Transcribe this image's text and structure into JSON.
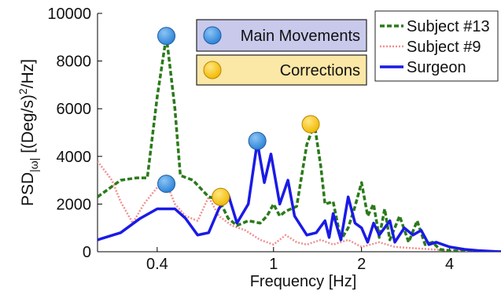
{
  "chart_data": {
    "type": "line",
    "xscale": "log",
    "xlabel": "Frequency [Hz]",
    "ylabel_parts": {
      "main": "PSD",
      "sub": "|ω|",
      "mid": " [(Deg/s)",
      "sup": "2",
      "tail": "/Hz]"
    },
    "xlim": [
      0.25,
      6.0
    ],
    "ylim": [
      0,
      10000
    ],
    "xticks": [
      0.4,
      1,
      2,
      4
    ],
    "xtick_labels": [
      "0.4",
      "1",
      "2",
      "4"
    ],
    "yticks": [
      0,
      2000,
      4000,
      6000,
      8000,
      10000
    ],
    "ytick_labels": [
      "0",
      "2000",
      "4000",
      "6000",
      "8000",
      "10000"
    ],
    "grid": false,
    "legend_position": "top-right",
    "series": [
      {
        "name": "Subject #13",
        "color": "#2a7a1a",
        "style": "dashed",
        "points": [
          [
            0.25,
            2300
          ],
          [
            0.3,
            3000
          ],
          [
            0.34,
            3100
          ],
          [
            0.37,
            3100
          ],
          [
            0.4,
            6500
          ],
          [
            0.43,
            9050
          ],
          [
            0.46,
            6000
          ],
          [
            0.48,
            3200
          ],
          [
            0.53,
            3000
          ],
          [
            0.6,
            2300
          ],
          [
            0.65,
            2200
          ],
          [
            0.7,
            1400
          ],
          [
            0.75,
            1100
          ],
          [
            0.82,
            1300
          ],
          [
            0.9,
            1200
          ],
          [
            0.95,
            1500
          ],
          [
            1.0,
            2000
          ],
          [
            1.05,
            1500
          ],
          [
            1.1,
            1700
          ],
          [
            1.2,
            1900
          ],
          [
            1.3,
            4500
          ],
          [
            1.38,
            5350
          ],
          [
            1.45,
            3600
          ],
          [
            1.5,
            2000
          ],
          [
            1.6,
            2100
          ],
          [
            1.7,
            500
          ],
          [
            1.8,
            1000
          ],
          [
            1.9,
            1900
          ],
          [
            2.0,
            2900
          ],
          [
            2.1,
            1500
          ],
          [
            2.2,
            2000
          ],
          [
            2.3,
            600
          ],
          [
            2.4,
            1800
          ],
          [
            2.5,
            500
          ],
          [
            2.7,
            1500
          ],
          [
            2.9,
            400
          ],
          [
            3.1,
            1300
          ],
          [
            3.3,
            300
          ],
          [
            3.5,
            400
          ],
          [
            3.7,
            100
          ],
          [
            4.0,
            50
          ],
          [
            5.0,
            0
          ],
          [
            6.0,
            0
          ]
        ]
      },
      {
        "name": "Subject #9",
        "color": "#f09090",
        "style": "dotted",
        "points": [
          [
            0.25,
            3800
          ],
          [
            0.28,
            3000
          ],
          [
            0.3,
            2100
          ],
          [
            0.33,
            1200
          ],
          [
            0.36,
            2000
          ],
          [
            0.4,
            2700
          ],
          [
            0.43,
            2900
          ],
          [
            0.46,
            2000
          ],
          [
            0.5,
            1500
          ],
          [
            0.55,
            1300
          ],
          [
            0.6,
            2300
          ],
          [
            0.65,
            1500
          ],
          [
            0.72,
            1100
          ],
          [
            0.8,
            900
          ],
          [
            0.9,
            500
          ],
          [
            1.0,
            300
          ],
          [
            1.1,
            700
          ],
          [
            1.2,
            400
          ],
          [
            1.3,
            300
          ],
          [
            1.45,
            500
          ],
          [
            1.6,
            300
          ],
          [
            1.8,
            500
          ],
          [
            2.0,
            200
          ],
          [
            2.3,
            400
          ],
          [
            2.6,
            200
          ],
          [
            3.0,
            150
          ],
          [
            3.5,
            100
          ],
          [
            4.0,
            50
          ],
          [
            6.0,
            0
          ]
        ]
      },
      {
        "name": "Surgeon",
        "color": "#1a1ae6",
        "style": "solid",
        "points": [
          [
            0.25,
            500
          ],
          [
            0.3,
            800
          ],
          [
            0.35,
            1400
          ],
          [
            0.4,
            1800
          ],
          [
            0.46,
            1800
          ],
          [
            0.5,
            1400
          ],
          [
            0.55,
            700
          ],
          [
            0.6,
            800
          ],
          [
            0.65,
            1800
          ],
          [
            0.7,
            2400
          ],
          [
            0.75,
            1200
          ],
          [
            0.82,
            2000
          ],
          [
            0.88,
            4600
          ],
          [
            0.93,
            2900
          ],
          [
            0.98,
            4100
          ],
          [
            1.05,
            2000
          ],
          [
            1.12,
            3000
          ],
          [
            1.18,
            1500
          ],
          [
            1.3,
            700
          ],
          [
            1.4,
            800
          ],
          [
            1.5,
            1300
          ],
          [
            1.55,
            600
          ],
          [
            1.6,
            1600
          ],
          [
            1.7,
            500
          ],
          [
            1.8,
            2300
          ],
          [
            1.9,
            1200
          ],
          [
            2.0,
            1000
          ],
          [
            2.1,
            400
          ],
          [
            2.2,
            1200
          ],
          [
            2.3,
            700
          ],
          [
            2.5,
            1300
          ],
          [
            2.6,
            400
          ],
          [
            2.8,
            1000
          ],
          [
            3.0,
            700
          ],
          [
            3.2,
            900
          ],
          [
            3.4,
            300
          ],
          [
            3.6,
            400
          ],
          [
            4.0,
            200
          ],
          [
            4.5,
            100
          ],
          [
            5.0,
            50
          ],
          [
            6.0,
            0
          ]
        ]
      }
    ],
    "markers": [
      {
        "kind": "main",
        "x": 0.43,
        "y": 9050
      },
      {
        "kind": "main",
        "x": 0.43,
        "y": 2850
      },
      {
        "kind": "main",
        "x": 0.88,
        "y": 4650
      },
      {
        "kind": "correction",
        "x": 0.66,
        "y": 2300
      },
      {
        "kind": "correction",
        "x": 1.34,
        "y": 5350
      }
    ],
    "marker_colors": {
      "main": {
        "fill": "#2a82d8",
        "highlight": "#8cc4f4",
        "edge": "#1d5aa0"
      },
      "correction": {
        "fill": "#f2b800",
        "highlight": "#ffe680",
        "edge": "#b88600"
      }
    },
    "annotation_boxes": [
      {
        "label": "Main Movements",
        "kind": "main",
        "bg": "#c9c9ec"
      },
      {
        "label": "Corrections",
        "kind": "correction",
        "bg": "#fbe7a6"
      }
    ]
  }
}
